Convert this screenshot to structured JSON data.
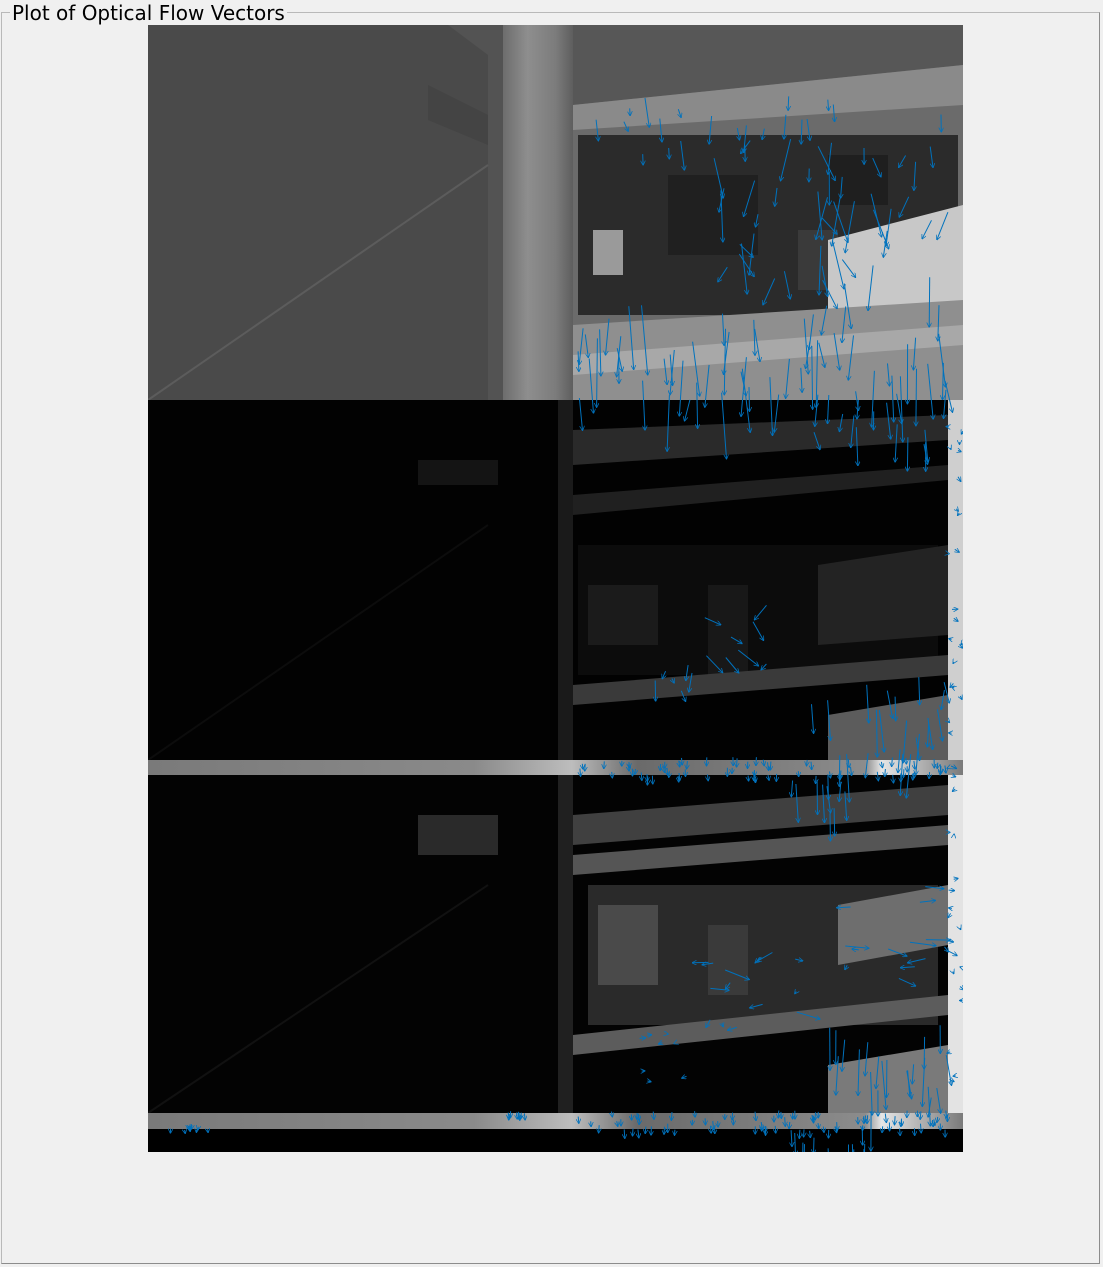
{
  "panel": {
    "title": "Plot of Optical Flow Vectors"
  },
  "figure": {
    "description_kind": "grayscale image frames with overlaid quiver arrows",
    "colors": {
      "background": "#f0f0f0",
      "vector": "#0072bd",
      "frame_border": "#b9b9b9"
    }
  }
}
